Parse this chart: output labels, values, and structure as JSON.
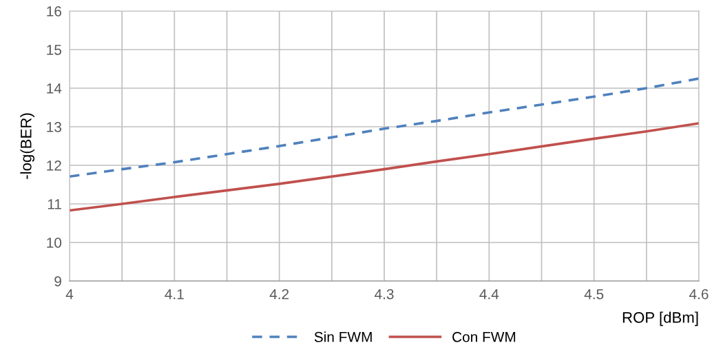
{
  "chart_data": {
    "type": "line",
    "xlabel": "ROP [dBm]",
    "ylabel": "-log(BER)",
    "x": [
      4,
      4.05,
      4.1,
      4.2,
      4.3,
      4.35,
      4.4,
      4.5,
      4.55,
      4.6
    ],
    "series": [
      {
        "name": "Sin FWM",
        "color": "#4f81bd",
        "line_style": "dashed",
        "values": [
          11.71,
          11.9,
          12.08,
          12.5,
          12.95,
          13.15,
          13.37,
          13.78,
          14.0,
          14.25
        ]
      },
      {
        "name": "Con FWM",
        "color": "#c0504d",
        "line_style": "solid",
        "values": [
          10.83,
          11.0,
          11.18,
          11.52,
          11.9,
          12.1,
          12.29,
          12.69,
          12.88,
          13.09
        ]
      }
    ],
    "xlim": [
      4,
      4.6
    ],
    "xticks": [
      4,
      {
        "value": 4.05,
        "label": null
      },
      4.1,
      {
        "value": 4.15,
        "label": null
      },
      4.2,
      {
        "value": 4.25,
        "label": null
      },
      4.3,
      {
        "value": 4.35,
        "label": null
      },
      4.4,
      {
        "value": 4.45,
        "label": null
      },
      4.5,
      {
        "value": 4.55,
        "label": null
      },
      4.6
    ],
    "ylim": [
      9,
      16
    ],
    "yticks": [
      9,
      10,
      11,
      12,
      13,
      14,
      15,
      16
    ],
    "grid": true,
    "legend": "bottom",
    "marker": "none"
  }
}
